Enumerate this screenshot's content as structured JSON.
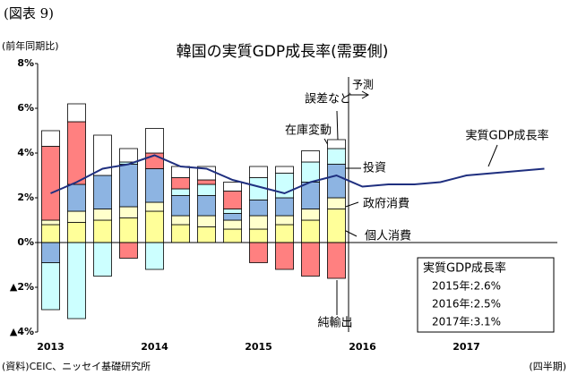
{
  "figure_label": "(図表 9)",
  "chart_data": {
    "type": "bar",
    "title": "韓国の実質GDP成長率(需要側)",
    "y_axis_label": "(前年同期比)",
    "x_axis_label": "(四半期)",
    "source": "(資料)CEIC、ニッセイ基礎研究所",
    "forecast_label": "予測",
    "categories": [
      "2013",
      null,
      null,
      null,
      "2014",
      null,
      null,
      null,
      "2015",
      null,
      null,
      null,
      "2016",
      null,
      null,
      null,
      "2017",
      null,
      null,
      null
    ],
    "series": [
      {
        "name": "個人消費",
        "color": "#ffff99",
        "values": [
          0.8,
          0.9,
          1.0,
          1.1,
          1.4,
          0.8,
          0.7,
          0.6,
          0.6,
          0.8,
          1.0,
          1.5,
          null,
          null,
          null,
          null,
          null,
          null,
          null,
          null
        ]
      },
      {
        "name": "政府消費",
        "color": "#ffffcc",
        "values": [
          0.2,
          0.5,
          0.5,
          0.5,
          0.4,
          0.4,
          0.5,
          0.4,
          0.6,
          0.4,
          0.5,
          0.5,
          null,
          null,
          null,
          null,
          null,
          null,
          null,
          null
        ]
      },
      {
        "name": "投資",
        "color": "#8db4e2",
        "values": [
          -0.9,
          1.2,
          1.5,
          1.9,
          1.5,
          0.9,
          0.9,
          0.3,
          0.7,
          0.8,
          1.2,
          1.5,
          null,
          null,
          null,
          null,
          null,
          null,
          null,
          null
        ]
      },
      {
        "name": "在庫変動",
        "color": "#ccffff",
        "values": [
          -2.1,
          -3.4,
          -1.5,
          0.1,
          -1.2,
          0.3,
          0.5,
          0.2,
          1.0,
          1.1,
          0.9,
          0.7,
          null,
          null,
          null,
          null,
          null,
          null,
          null,
          null
        ]
      },
      {
        "name": "純輸出",
        "color": "#ff8080",
        "values": [
          3.3,
          2.8,
          0,
          -0.7,
          0.7,
          0.5,
          0.2,
          0.8,
          -0.9,
          -1.2,
          -1.5,
          -1.6,
          null,
          null,
          null,
          null,
          null,
          null,
          null,
          null
        ]
      },
      {
        "name": "誤差など",
        "color": "#ffffff",
        "values": [
          0.7,
          0.8,
          1.8,
          0.6,
          1.1,
          0.5,
          0.6,
          0.4,
          0.5,
          0.3,
          0.5,
          0.4,
          null,
          null,
          null,
          null,
          null,
          null,
          null,
          null
        ]
      },
      {
        "name": "実質GDP成長率",
        "type": "line",
        "color": "#1f2f7f",
        "values": [
          2.2,
          2.7,
          3.3,
          3.5,
          3.9,
          3.4,
          3.3,
          2.8,
          2.5,
          2.2,
          2.7,
          3.0,
          2.5,
          2.6,
          2.6,
          2.7,
          3.0,
          3.1,
          3.2,
          3.3
        ]
      }
    ],
    "ylim": [
      -4,
      8
    ],
    "yticks": [
      {
        "value": -4,
        "label": "▲4%"
      },
      {
        "value": -2,
        "label": "▲2%"
      },
      {
        "value": 0,
        "label": "0%"
      },
      {
        "value": 2,
        "label": "2%"
      },
      {
        "value": 4,
        "label": "4%"
      },
      {
        "value": 6,
        "label": "6%"
      },
      {
        "value": 8,
        "label": "8%"
      }
    ],
    "box": {
      "title": "実質GDP成長率",
      "lines": [
        "2015年:2.6%",
        "2016年:2.5%",
        "2017年:3.1%"
      ]
    }
  }
}
